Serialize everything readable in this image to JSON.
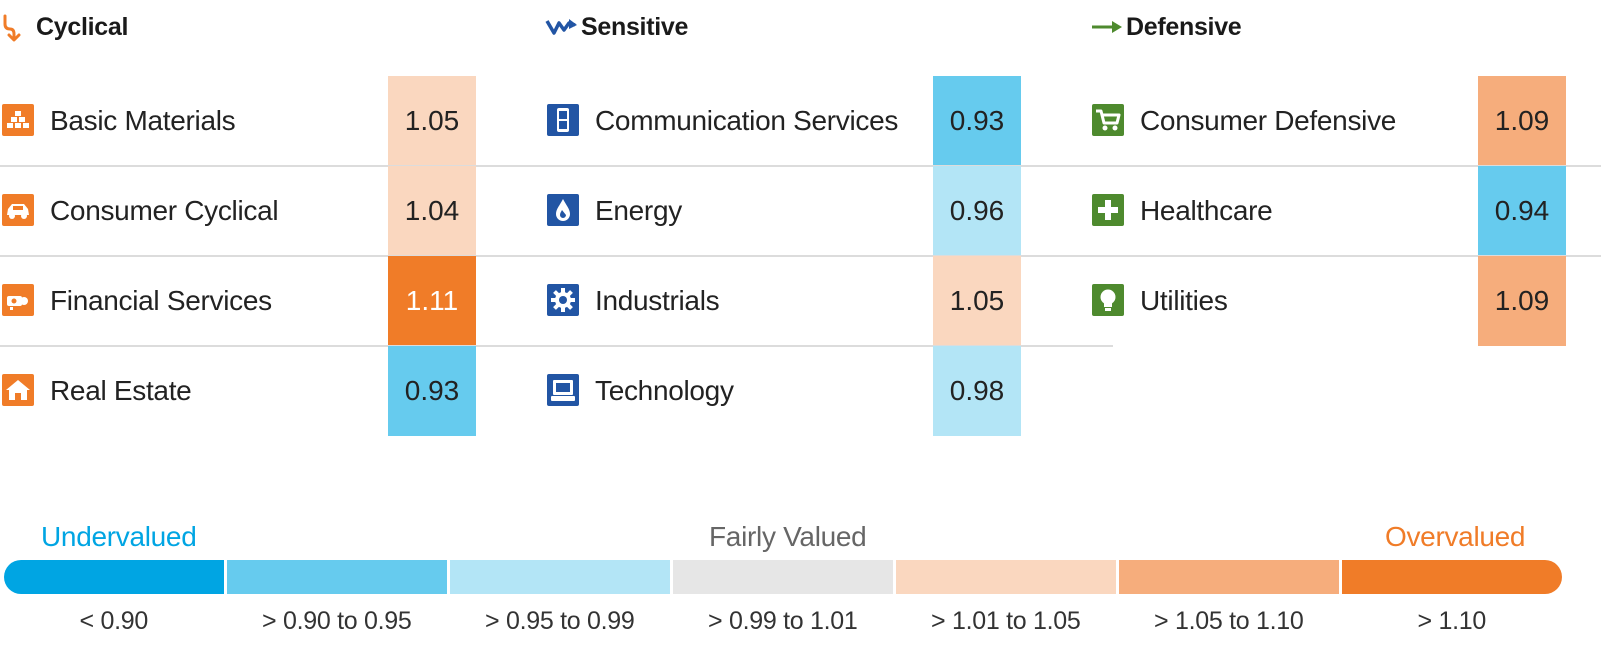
{
  "colors": {
    "scale": [
      "#00a5e3",
      "#66cbee",
      "#b3e5f6",
      "#e6e6e6",
      "#fad7bf",
      "#f6ad7c",
      "#f07c28"
    ],
    "cyclical_icon": "#f07c28",
    "sensitive_icon": "#2255a4",
    "defensive_icon": "#4e8a2e",
    "undervalued_text": "#00a5e3",
    "fairly_text": "#666666",
    "overvalued_text": "#f07c28"
  },
  "chart_data": {
    "type": "table",
    "groups": [
      {
        "name": "Cyclical",
        "icon": "cyclical-icon",
        "sectors": [
          {
            "label": "Basic Materials",
            "icon": "basic-materials-icon",
            "value": "1.05"
          },
          {
            "label": "Consumer Cyclical",
            "icon": "consumer-cyclical-icon",
            "value": "1.04"
          },
          {
            "label": "Financial Services",
            "icon": "financial-services-icon",
            "value": "1.11"
          },
          {
            "label": "Real Estate",
            "icon": "real-estate-icon",
            "value": "0.93"
          }
        ]
      },
      {
        "name": "Sensitive",
        "icon": "sensitive-icon",
        "sectors": [
          {
            "label": "Communication Services",
            "icon": "communication-services-icon",
            "value": "0.93"
          },
          {
            "label": "Energy",
            "icon": "energy-icon",
            "value": "0.96"
          },
          {
            "label": "Industrials",
            "icon": "industrials-icon",
            "value": "1.05"
          },
          {
            "label": "Technology",
            "icon": "technology-icon",
            "value": "0.98"
          }
        ]
      },
      {
        "name": "Defensive",
        "icon": "defensive-icon",
        "sectors": [
          {
            "label": "Consumer Defensive",
            "icon": "consumer-defensive-icon",
            "value": "1.09"
          },
          {
            "label": "Healthcare",
            "icon": "healthcare-icon",
            "value": "0.94"
          },
          {
            "label": "Utilities",
            "icon": "utilities-icon",
            "value": "1.09"
          }
        ]
      }
    ],
    "legend": {
      "undervalued": "Undervalued",
      "fairly_valued": "Fairly Valued",
      "overvalued": "Overvalued",
      "ranges": [
        "< 0.90",
        "> 0.90 to 0.95",
        "> 0.95 to 0.99",
        "> 0.99 to 1.01",
        "> 1.01 to 1.05",
        "> 1.05 to 1.10",
        "> 1.10"
      ]
    }
  }
}
